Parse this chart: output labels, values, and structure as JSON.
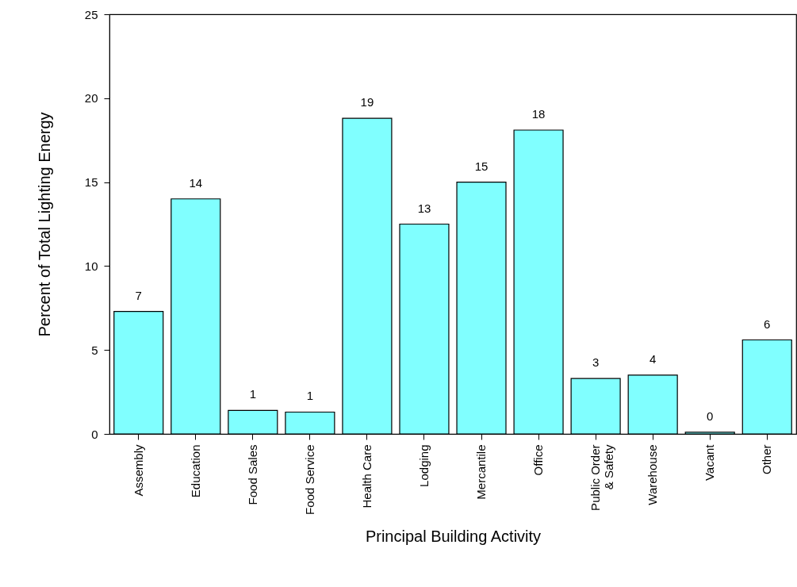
{
  "chart_data": {
    "type": "bar",
    "xlabel": "Principal Building Activity",
    "ylabel": "Percent of Total Lighting Energy",
    "categories": [
      "Assembly",
      "Education",
      "Food Sales",
      "Food Service",
      "Health Care",
      "Lodging",
      "Mercantile",
      "Office",
      "Public Order\n& Safety",
      "Warehouse",
      "Vacant",
      "Other"
    ],
    "values": [
      7.3,
      14.0,
      1.4,
      1.3,
      18.8,
      12.5,
      15.0,
      18.1,
      3.3,
      3.5,
      0.1,
      5.6
    ],
    "value_labels": [
      "7",
      "14",
      "1",
      "1",
      "19",
      "13",
      "15",
      "18",
      "3",
      "4",
      "0",
      "6"
    ],
    "color": "#80ffff",
    "ylim": [
      0,
      25
    ],
    "yticks": [
      0,
      5,
      10,
      15,
      20,
      25
    ],
    "grid": false
  }
}
